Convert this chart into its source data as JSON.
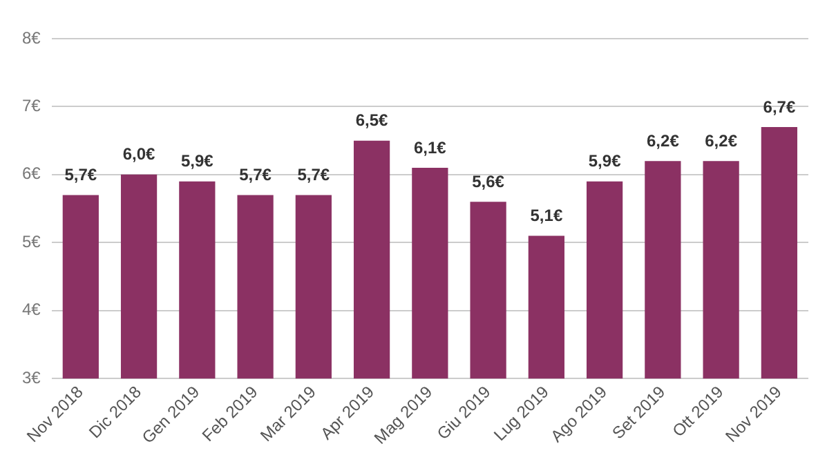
{
  "chart_data": {
    "type": "bar",
    "categories": [
      "Nov 2018",
      "Dic 2018",
      "Gen 2019",
      "Feb 2019",
      "Mar 2019",
      "Apr 2019",
      "Mag 2019",
      "Giu 2019",
      "Lug 2019",
      "Ago 2019",
      "Set 2019",
      "Ott 2019",
      "Nov 2019"
    ],
    "values": [
      5.7,
      6.0,
      5.9,
      5.7,
      5.7,
      6.5,
      6.1,
      5.6,
      5.1,
      5.9,
      6.2,
      6.2,
      6.7
    ],
    "value_labels": [
      "5,7€",
      "6,0€",
      "5,9€",
      "5,7€",
      "5,7€",
      "6,5€",
      "6,1€",
      "5,6€",
      "5,1€",
      "5,9€",
      "6,2€",
      "6,2€",
      "6,7€"
    ],
    "color": "#8b3163",
    "ylim": [
      3,
      8
    ],
    "yticks": [
      {
        "value": 3,
        "label": "3€"
      },
      {
        "value": 4,
        "label": "4€"
      },
      {
        "value": 5,
        "label": "5€"
      },
      {
        "value": 6,
        "label": "6€"
      },
      {
        "value": 7,
        "label": "7€"
      },
      {
        "value": 8,
        "label": "8€"
      }
    ],
    "grid": "y"
  }
}
